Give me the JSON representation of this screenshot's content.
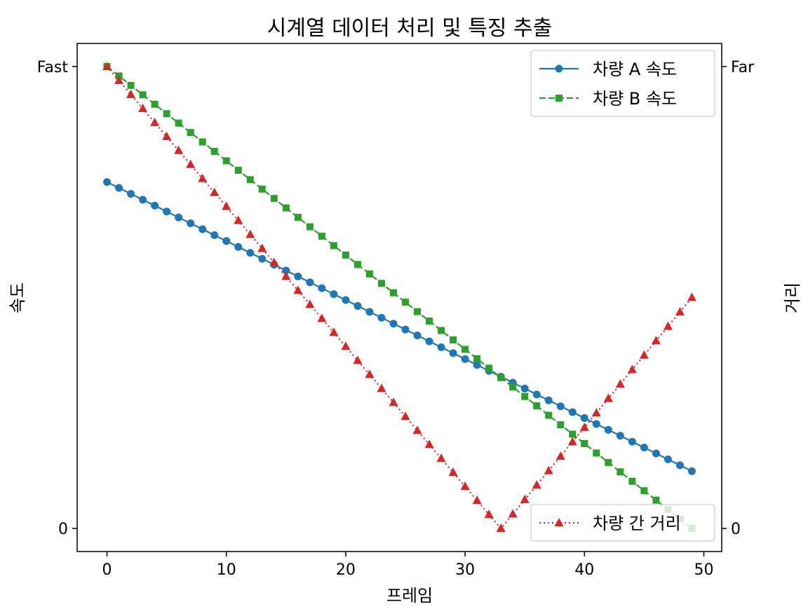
{
  "chart_data": {
    "type": "line",
    "title": "시계열 데이터 처리 및 특징 추출",
    "xlabel": "프레임",
    "ylabel_left": "속도",
    "ylabel_right": "거리",
    "xlim": [
      -2.5,
      51.5
    ],
    "xticks": [
      0,
      10,
      20,
      30,
      40,
      50
    ],
    "ylim_left": [
      -0.05,
      1.05
    ],
    "yticks_left": [
      {
        "value": 0,
        "label": "0"
      },
      {
        "value": 1,
        "label": "Fast"
      }
    ],
    "ylim_right": [
      -0.05,
      1.05
    ],
    "yticks_right": [
      {
        "value": 0,
        "label": "0"
      },
      {
        "value": 1,
        "label": "Far"
      }
    ],
    "grid": false,
    "x": {
      "start": 0,
      "end": 49,
      "step": 1
    },
    "series": [
      {
        "name": "차량 A 속도",
        "axis": "left",
        "color": "#1f77b4",
        "marker": "circle",
        "linestyle": "solid",
        "start": 0.75,
        "end": 0.124
      },
      {
        "name": "차량 B 속도",
        "axis": "left",
        "color": "#2ca02c",
        "marker": "square",
        "linestyle": "dashed",
        "start": 1.0,
        "end": 0.0
      },
      {
        "name": "차량 간 거리",
        "axis": "right",
        "color": "#d62728",
        "marker": "triangle",
        "linestyle": "dotted",
        "start": 1.0,
        "min_at": 33,
        "min_value": 0.0,
        "end": 0.5
      }
    ],
    "legends": [
      {
        "position": "upper-right",
        "entries": [
          "차량 A 속도",
          "차량 B 속도"
        ]
      },
      {
        "position": "lower-right",
        "entries": [
          "차량 간 거리"
        ]
      }
    ]
  }
}
